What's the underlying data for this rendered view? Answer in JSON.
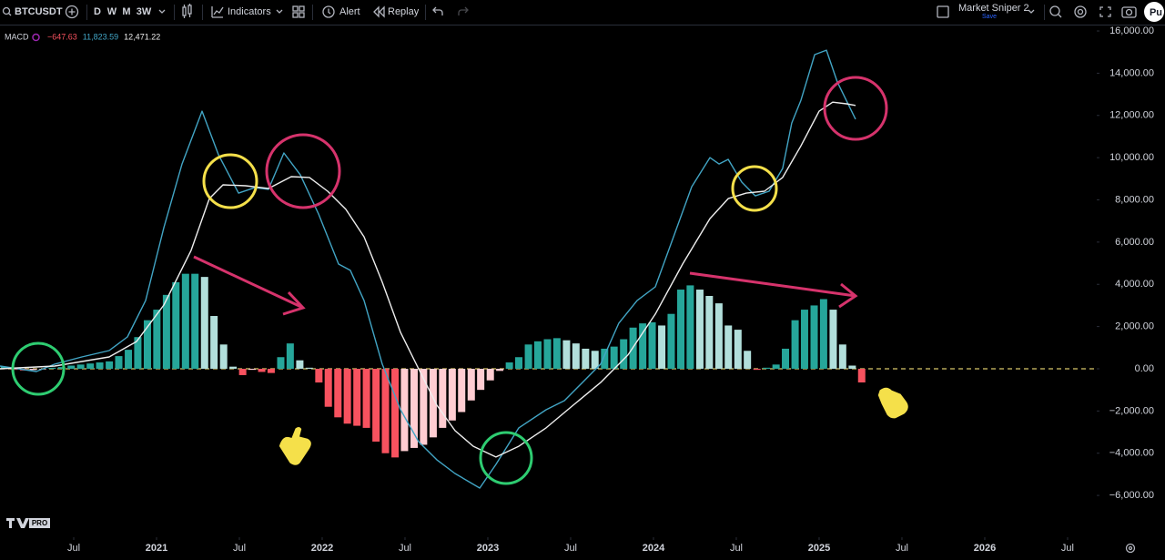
{
  "toolbar": {
    "symbol": "BTCUSDT",
    "intervals": [
      "D",
      "W",
      "M",
      "3W"
    ],
    "active_interval": "3W",
    "indicators": "Indicators",
    "alert": "Alert",
    "replay": "Replay",
    "layout": "Market Sniper 2",
    "layout_status": "Save",
    "publish": "Pu"
  },
  "branding": {
    "badge": "PRO"
  },
  "chart_data": {
    "type": "macd",
    "indicator": "MACD",
    "xlim": [
      2020.055,
      2026.676
    ],
    "xticks": [
      {
        "value": 2020.5,
        "label": "Jul"
      },
      2021,
      {
        "value": 2021.5,
        "label": "Jul"
      },
      2022,
      {
        "value": 2022.5,
        "label": "Jul"
      },
      2023,
      {
        "value": 2023.5,
        "label": "Jul"
      },
      2024,
      {
        "value": 2024.5,
        "label": "Jul"
      },
      2025,
      {
        "value": 2025.5,
        "label": "Jul"
      },
      2026,
      {
        "value": 2026.5,
        "label": "Jul"
      }
    ],
    "ylim": [
      -7980,
      16260
    ],
    "yticks": [
      {
        "value": 16000,
        "label": "16,000.00"
      },
      {
        "value": 14000,
        "label": "14,000.00"
      },
      {
        "value": 12000,
        "label": "12,000.00"
      },
      {
        "value": 10000,
        "label": "10,000.00"
      },
      {
        "value": 8000,
        "label": "8,000.00"
      },
      {
        "value": 6000,
        "label": "6,000.00"
      },
      {
        "value": 4000,
        "label": "4,000.00"
      },
      {
        "value": 2000,
        "label": "2,000.00"
      },
      {
        "value": 0,
        "label": "0.00"
      },
      {
        "value": -2000,
        "label": "−2,000.00"
      },
      {
        "value": -4000,
        "label": "−4,000.00"
      },
      {
        "value": -6000,
        "label": "−6,000.00"
      }
    ],
    "grid": false,
    "zero_line_color": "#d8c56a",
    "series": [
      {
        "kind": "histogram",
        "colors": [
          "#26a69a",
          "#b2dfdb",
          "#f7525f",
          "#ffcdd2"
        ],
        "last_label": "−647.63",
        "x": [
          2020.082,
          2020.14,
          2020.197,
          2020.255,
          2020.312,
          2020.37,
          2020.427,
          2020.485,
          2020.542,
          2020.6,
          2020.657,
          2020.715,
          2020.772,
          2020.83,
          2020.887,
          2020.945,
          2021.002,
          2021.06,
          2021.117,
          2021.175,
          2021.232,
          2021.29,
          2021.347,
          2021.405,
          2021.462,
          2021.52,
          2021.577,
          2021.635,
          2021.692,
          2021.75,
          2021.807,
          2021.865,
          2021.922,
          2021.98,
          2022.037,
          2022.095,
          2022.152,
          2022.21,
          2022.267,
          2022.325,
          2022.382,
          2022.44,
          2022.497,
          2022.555,
          2022.612,
          2022.67,
          2022.727,
          2022.785,
          2022.842,
          2022.9,
          2022.957,
          2023.015,
          2023.072,
          2023.13,
          2023.187,
          2023.245,
          2023.302,
          2023.36,
          2023.417,
          2023.475,
          2023.532,
          2023.59,
          2023.647,
          2023.705,
          2023.762,
          2023.82,
          2023.877,
          2023.935,
          2023.992,
          2024.05,
          2024.107,
          2024.165,
          2024.222,
          2024.28,
          2024.337,
          2024.395,
          2024.452,
          2024.51,
          2024.567,
          2024.625,
          2024.682,
          2024.74,
          2024.797,
          2024.855,
          2024.912,
          2024.97,
          2025.027,
          2025.085,
          2025.142,
          2025.2,
          2025.257
        ],
        "values": [
          100,
          -50,
          -80,
          -60,
          -30,
          50,
          80,
          150,
          200,
          250,
          300,
          350,
          600,
          900,
          1500,
          2300,
          2800,
          3500,
          4100,
          4500,
          4500,
          4350,
          2500,
          1150,
          100,
          -300,
          -50,
          -150,
          -200,
          550,
          1200,
          400,
          50,
          -650,
          -1800,
          -2300,
          -2600,
          -2700,
          -2800,
          -3450,
          -4000,
          -4200,
          -3900,
          -3750,
          -3600,
          -3250,
          -2800,
          -2450,
          -2050,
          -1500,
          -1000,
          -550,
          -100,
          300,
          550,
          1150,
          1300,
          1400,
          1450,
          1350,
          1200,
          950,
          850,
          950,
          1050,
          1400,
          1950,
          2150,
          2200,
          2050,
          2600,
          3750,
          3950,
          3750,
          3450,
          3100,
          2050,
          1850,
          850,
          -50,
          50,
          200,
          950,
          2300,
          2800,
          3000,
          3300,
          2800,
          1150,
          150,
          -647.63
        ]
      },
      {
        "kind": "line",
        "color": "#42a5c5",
        "last_label": "11,823.59",
        "x": [
          2020.055,
          2020.275,
          2020.385,
          2020.549,
          2020.714,
          2020.824,
          2020.934,
          2020.989,
          2021.044,
          2021.154,
          2021.275,
          2021.374,
          2021.495,
          2021.593,
          2021.676,
          2021.769,
          2021.868,
          2021.978,
          2022.099,
          2022.17,
          2022.253,
          2022.363,
          2022.473,
          2022.582,
          2022.692,
          2022.802,
          2022.951,
          2023.049,
          2023.187,
          2023.352,
          2023.462,
          2023.571,
          2023.681,
          2023.791,
          2023.901,
          2024.011,
          2024.121,
          2024.231,
          2024.341,
          2024.396,
          2024.451,
          2024.533,
          2024.615,
          2024.698,
          2024.78,
          2024.835,
          2024.89,
          2024.973,
          2025.044,
          2025.11,
          2025.22
        ],
        "values": [
          130,
          -130,
          220,
          560,
          860,
          1510,
          3230,
          4960,
          6680,
          9700,
          12200,
          10130,
          8320,
          8580,
          8500,
          10220,
          9180,
          7330,
          4960,
          4660,
          3230,
          220,
          -1940,
          -3450,
          -4310,
          -4960,
          -5650,
          -4530,
          -2800,
          -1940,
          -1510,
          -650,
          220,
          2160,
          3230,
          3880,
          6250,
          8620,
          10000,
          9700,
          9920,
          8840,
          8190,
          8410,
          9490,
          11640,
          12720,
          14880,
          15090,
          13580,
          11823.59
        ]
      },
      {
        "kind": "line",
        "color": "#eeeeee",
        "last_label": "12,471.22",
        "x": [
          2020.055,
          2020.385,
          2020.714,
          2020.879,
          2021.044,
          2021.209,
          2021.319,
          2021.401,
          2021.538,
          2021.676,
          2021.813,
          2021.923,
          2022.033,
          2022.143,
          2022.253,
          2022.363,
          2022.473,
          2022.582,
          2022.692,
          2022.802,
          2022.912,
          2023.049,
          2023.187,
          2023.352,
          2023.516,
          2023.681,
          2023.846,
          2024.011,
          2024.176,
          2024.341,
          2024.451,
          2024.56,
          2024.67,
          2024.78,
          2024.89,
          2025.0,
          2025.082,
          2025.165,
          2025.22
        ],
        "values": [
          0,
          130,
          560,
          1290,
          3020,
          5610,
          8060,
          8710,
          8670,
          8540,
          9100,
          9060,
          8410,
          7550,
          6250,
          4100,
          1720,
          0,
          -1720,
          -2930,
          -3670,
          -4180,
          -3670,
          -2800,
          -1720,
          -650,
          650,
          2590,
          4960,
          7110,
          8060,
          8320,
          8410,
          9060,
          10560,
          12200,
          12630,
          12550,
          12471.22
        ]
      }
    ]
  }
}
